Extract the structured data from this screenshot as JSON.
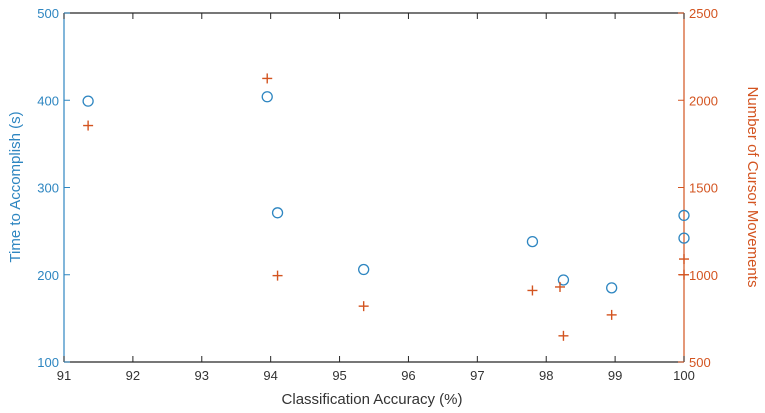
{
  "chart_data": {
    "type": "scatter",
    "title": "",
    "xlabel": "Classification Accuracy (%)",
    "ylabel_left": "Time to Accomplish (s)",
    "ylabel_right": "Number of Cursor Movements",
    "xlim": [
      91,
      100
    ],
    "ylim_left": [
      100,
      500
    ],
    "ylim_right": [
      500,
      2500
    ],
    "x_ticks": [
      91,
      92,
      93,
      94,
      95,
      96,
      97,
      98,
      99,
      100
    ],
    "y_left_ticks": [
      100,
      200,
      300,
      400,
      500
    ],
    "y_right_ticks": [
      500,
      1000,
      1500,
      2000,
      2500
    ],
    "grid": false,
    "colors": {
      "left": "#2e86c1",
      "right": "#d35420"
    },
    "series": [
      {
        "axis": "left",
        "marker": "circle",
        "points": [
          {
            "x": 91.35,
            "y": 399
          },
          {
            "x": 93.95,
            "y": 404
          },
          {
            "x": 94.1,
            "y": 271
          },
          {
            "x": 95.35,
            "y": 206
          },
          {
            "x": 97.8,
            "y": 238
          },
          {
            "x": 98.25,
            "y": 194
          },
          {
            "x": 98.95,
            "y": 185
          },
          {
            "x": 100,
            "y": 268
          },
          {
            "x": 100,
            "y": 242
          }
        ]
      },
      {
        "axis": "right",
        "marker": "plus",
        "points": [
          {
            "x": 91.35,
            "y": 1855
          },
          {
            "x": 93.95,
            "y": 2125
          },
          {
            "x": 94.1,
            "y": 995
          },
          {
            "x": 95.35,
            "y": 820
          },
          {
            "x": 97.8,
            "y": 910
          },
          {
            "x": 98.2,
            "y": 930
          },
          {
            "x": 98.25,
            "y": 650
          },
          {
            "x": 98.95,
            "y": 770
          },
          {
            "x": 100,
            "y": 1090
          },
          {
            "x": 100,
            "y": 1000
          }
        ]
      }
    ]
  }
}
